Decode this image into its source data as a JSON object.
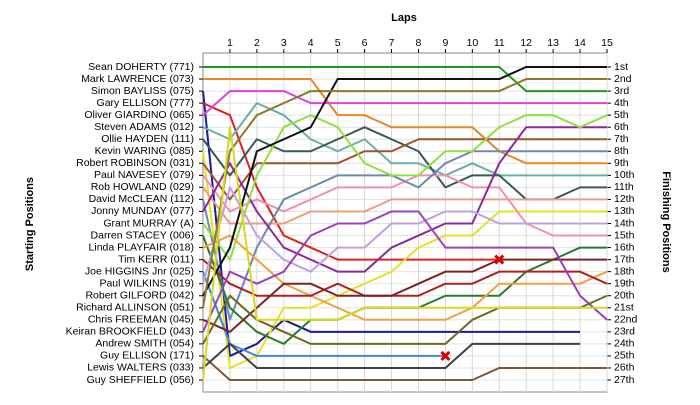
{
  "chart_data": {
    "type": "lap",
    "title": "Laps",
    "y_label_left": "Starting Positions",
    "y_label_right": "Finishing Positions",
    "x": [
      0,
      1,
      2,
      3,
      4,
      5,
      6,
      7,
      8,
      9,
      10,
      11,
      12,
      13,
      14,
      15
    ],
    "xlim": [
      0,
      15
    ],
    "xticks": [
      1,
      2,
      3,
      4,
      5,
      6,
      7,
      8,
      9,
      10,
      11,
      12,
      13,
      14,
      15
    ],
    "ylim": [
      1,
      27
    ],
    "starting_positions": [
      "Sean DOHERTY (771)",
      "Mark LAWRENCE (073)",
      "Simon BAYLISS (075)",
      "Gary ELLISON (777)",
      "Oliver GIARDINO (065)",
      "Steven ADAMS (012)",
      "Ollie HAYDEN (111)",
      "Kevin WARING (085)",
      "Robert ROBINSON (031)",
      "Paul NAVESEY (079)",
      "Rob HOWLAND (029)",
      "David McCLEAN (112)",
      "Jonny MUNDAY (077)",
      "Grant MURRAY (A)",
      "Darren STACEY (006)",
      "Linda PLAYFAIR (018)",
      "Tim KERR (011)",
      "Joe HIGGINS Jnr (025)",
      "Paul WILKINS (019)",
      "Robert GILFORD (042)",
      "Richard ALLINSON (051)",
      "Chris FREEMAN (045)",
      "Keiran BROOKFIELD (043)",
      "Andrew SMITH (054)",
      "Guy ELLISON (171)",
      "Lewis WALTERS (033)",
      "Guy SHEFFIELD (056)"
    ],
    "finishing_positions": [
      "1st",
      "2nd",
      "3rd",
      "4th",
      "5th",
      "6th",
      "7th",
      "8th",
      "9th",
      "10th",
      "11th",
      "12th",
      "13th",
      "14th",
      "15th",
      "16th",
      "17th",
      "18th",
      "19th",
      "20th",
      "21st",
      "22nd",
      "23rd",
      "24th",
      "25th",
      "26th",
      "27th"
    ],
    "series": [
      {
        "color": "#1f9a1f",
        "values": [
          1,
          1,
          1,
          1,
          1,
          1,
          1,
          1,
          1,
          1,
          1,
          1,
          3,
          3,
          3,
          3
        ]
      },
      {
        "color": "#e8862a",
        "values": [
          2,
          2,
          2,
          2,
          2,
          5,
          5,
          6,
          6,
          6,
          6,
          8,
          9,
          9,
          9,
          9
        ]
      },
      {
        "color": "#1a1a9a",
        "values": [
          3,
          25,
          24,
          22,
          23,
          23,
          23,
          23,
          23,
          23,
          23,
          23,
          23,
          23,
          23,
          null
        ]
      },
      {
        "color": "#dd2222",
        "values": [
          4,
          5,
          11,
          15,
          16,
          17,
          17,
          17,
          17,
          17,
          17,
          17,
          null,
          null,
          null,
          null
        ]
      },
      {
        "color": "#e040e0",
        "values": [
          5,
          3,
          3,
          3,
          4,
          4,
          4,
          4,
          4,
          4,
          4,
          4,
          4,
          4,
          4,
          4
        ]
      },
      {
        "color": "#6ab0a0",
        "values": [
          6,
          7,
          4,
          5,
          7,
          8,
          7,
          9,
          9,
          10,
          9,
          10,
          10,
          10,
          10,
          10
        ]
      },
      {
        "color": "#3a5a5a",
        "values": [
          7,
          10,
          7,
          8,
          8,
          7,
          6,
          7,
          8,
          11,
          10,
          10,
          12,
          12,
          11,
          11
        ]
      },
      {
        "color": "#e8e020",
        "values": [
          8,
          26,
          25,
          21,
          21,
          20,
          19,
          18,
          16,
          15,
          15,
          13,
          13,
          13,
          13,
          13
        ]
      },
      {
        "color": "#a0522d",
        "values": [
          9,
          12,
          9,
          9,
          9,
          9,
          8,
          8,
          7,
          7,
          7,
          7,
          7,
          7,
          7,
          7
        ]
      },
      {
        "color": "#f090b0",
        "values": [
          10,
          13,
          12,
          13,
          12,
          11,
          11,
          11,
          10,
          10,
          11,
          11,
          14,
          15,
          15,
          15
        ]
      },
      {
        "color": "#e8a080",
        "values": [
          11,
          14,
          14,
          14,
          13,
          13,
          13,
          12,
          12,
          12,
          12,
          12,
          12,
          12,
          12,
          12
        ]
      },
      {
        "color": "#6a8ab0",
        "values": [
          12,
          22,
          16,
          12,
          11,
          10,
          10,
          10,
          11,
          9,
          8,
          8,
          8,
          8,
          8,
          8
        ]
      },
      {
        "color": "#8a2a9a",
        "values": [
          13,
          9,
          13,
          16,
          17,
          18,
          18,
          16,
          15,
          14,
          14,
          9,
          6,
          6,
          6,
          6
        ]
      },
      {
        "color": "#90e040",
        "values": [
          14,
          17,
          10,
          6,
          5,
          6,
          9,
          10,
          10,
          8,
          8,
          6,
          5,
          5,
          6,
          5
        ]
      },
      {
        "color": "#2a7a2a",
        "values": [
          15,
          21,
          23,
          24,
          22,
          22,
          21,
          21,
          21,
          20,
          20,
          20,
          18,
          17,
          16,
          16
        ]
      },
      {
        "color": "#f0a040",
        "values": [
          16,
          15,
          17,
          19,
          20,
          21,
          22,
          22,
          22,
          22,
          21,
          19,
          19,
          19,
          19,
          18
        ]
      },
      {
        "color": "#b02020",
        "values": [
          17,
          19,
          20,
          20,
          20,
          19,
          20,
          20,
          20,
          19,
          19,
          18,
          18,
          18,
          18,
          19
        ]
      },
      {
        "color": "#3a8ad8",
        "values": [
          18,
          24,
          25,
          25,
          25,
          25,
          25,
          25,
          25,
          25,
          null,
          null,
          null,
          null,
          null,
          null
        ]
      },
      {
        "color": "#c0a0e0",
        "values": [
          19,
          11,
          15,
          17,
          18,
          16,
          16,
          14,
          14,
          13,
          13,
          14,
          14,
          14,
          14,
          14
        ]
      },
      {
        "color": "#111111",
        "values": [
          20,
          16,
          8,
          7,
          6,
          2,
          2,
          2,
          2,
          2,
          2,
          2,
          1,
          1,
          1,
          1
        ]
      },
      {
        "color": "#8a7a2a",
        "values": [
          21,
          8,
          5,
          4,
          3,
          3,
          3,
          3,
          3,
          3,
          3,
          3,
          2,
          2,
          2,
          2
        ]
      },
      {
        "color": "#802020",
        "values": [
          22,
          23,
          21,
          19,
          19,
          20,
          20,
          20,
          19,
          18,
          18,
          17,
          17,
          17,
          17,
          17
        ]
      },
      {
        "color": "#9a40c0",
        "values": [
          23,
          18,
          19,
          18,
          15,
          14,
          14,
          13,
          13,
          16,
          16,
          16,
          16,
          16,
          20,
          22
        ]
      },
      {
        "color": "#6a6a20",
        "values": [
          24,
          20,
          22,
          23,
          24,
          24,
          24,
          24,
          24,
          24,
          22,
          21,
          21,
          21,
          21,
          20
        ]
      },
      {
        "color": "#7a5a3a",
        "values": [
          25,
          27,
          27,
          27,
          27,
          27,
          27,
          27,
          27,
          27,
          27,
          26,
          26,
          26,
          26,
          26
        ]
      },
      {
        "color": "#404040",
        "values": [
          26,
          24,
          26,
          26,
          26,
          26,
          26,
          26,
          26,
          26,
          24,
          24,
          24,
          24,
          24,
          null
        ]
      },
      {
        "color": "#d8d820",
        "values": [
          27,
          6,
          22,
          22,
          22,
          22,
          21,
          21,
          21,
          21,
          21,
          21,
          21,
          21,
          21,
          21
        ]
      }
    ],
    "retired": [
      {
        "lap": 11,
        "position": 17
      },
      {
        "lap": 9,
        "position": 25
      }
    ],
    "grid": true
  }
}
